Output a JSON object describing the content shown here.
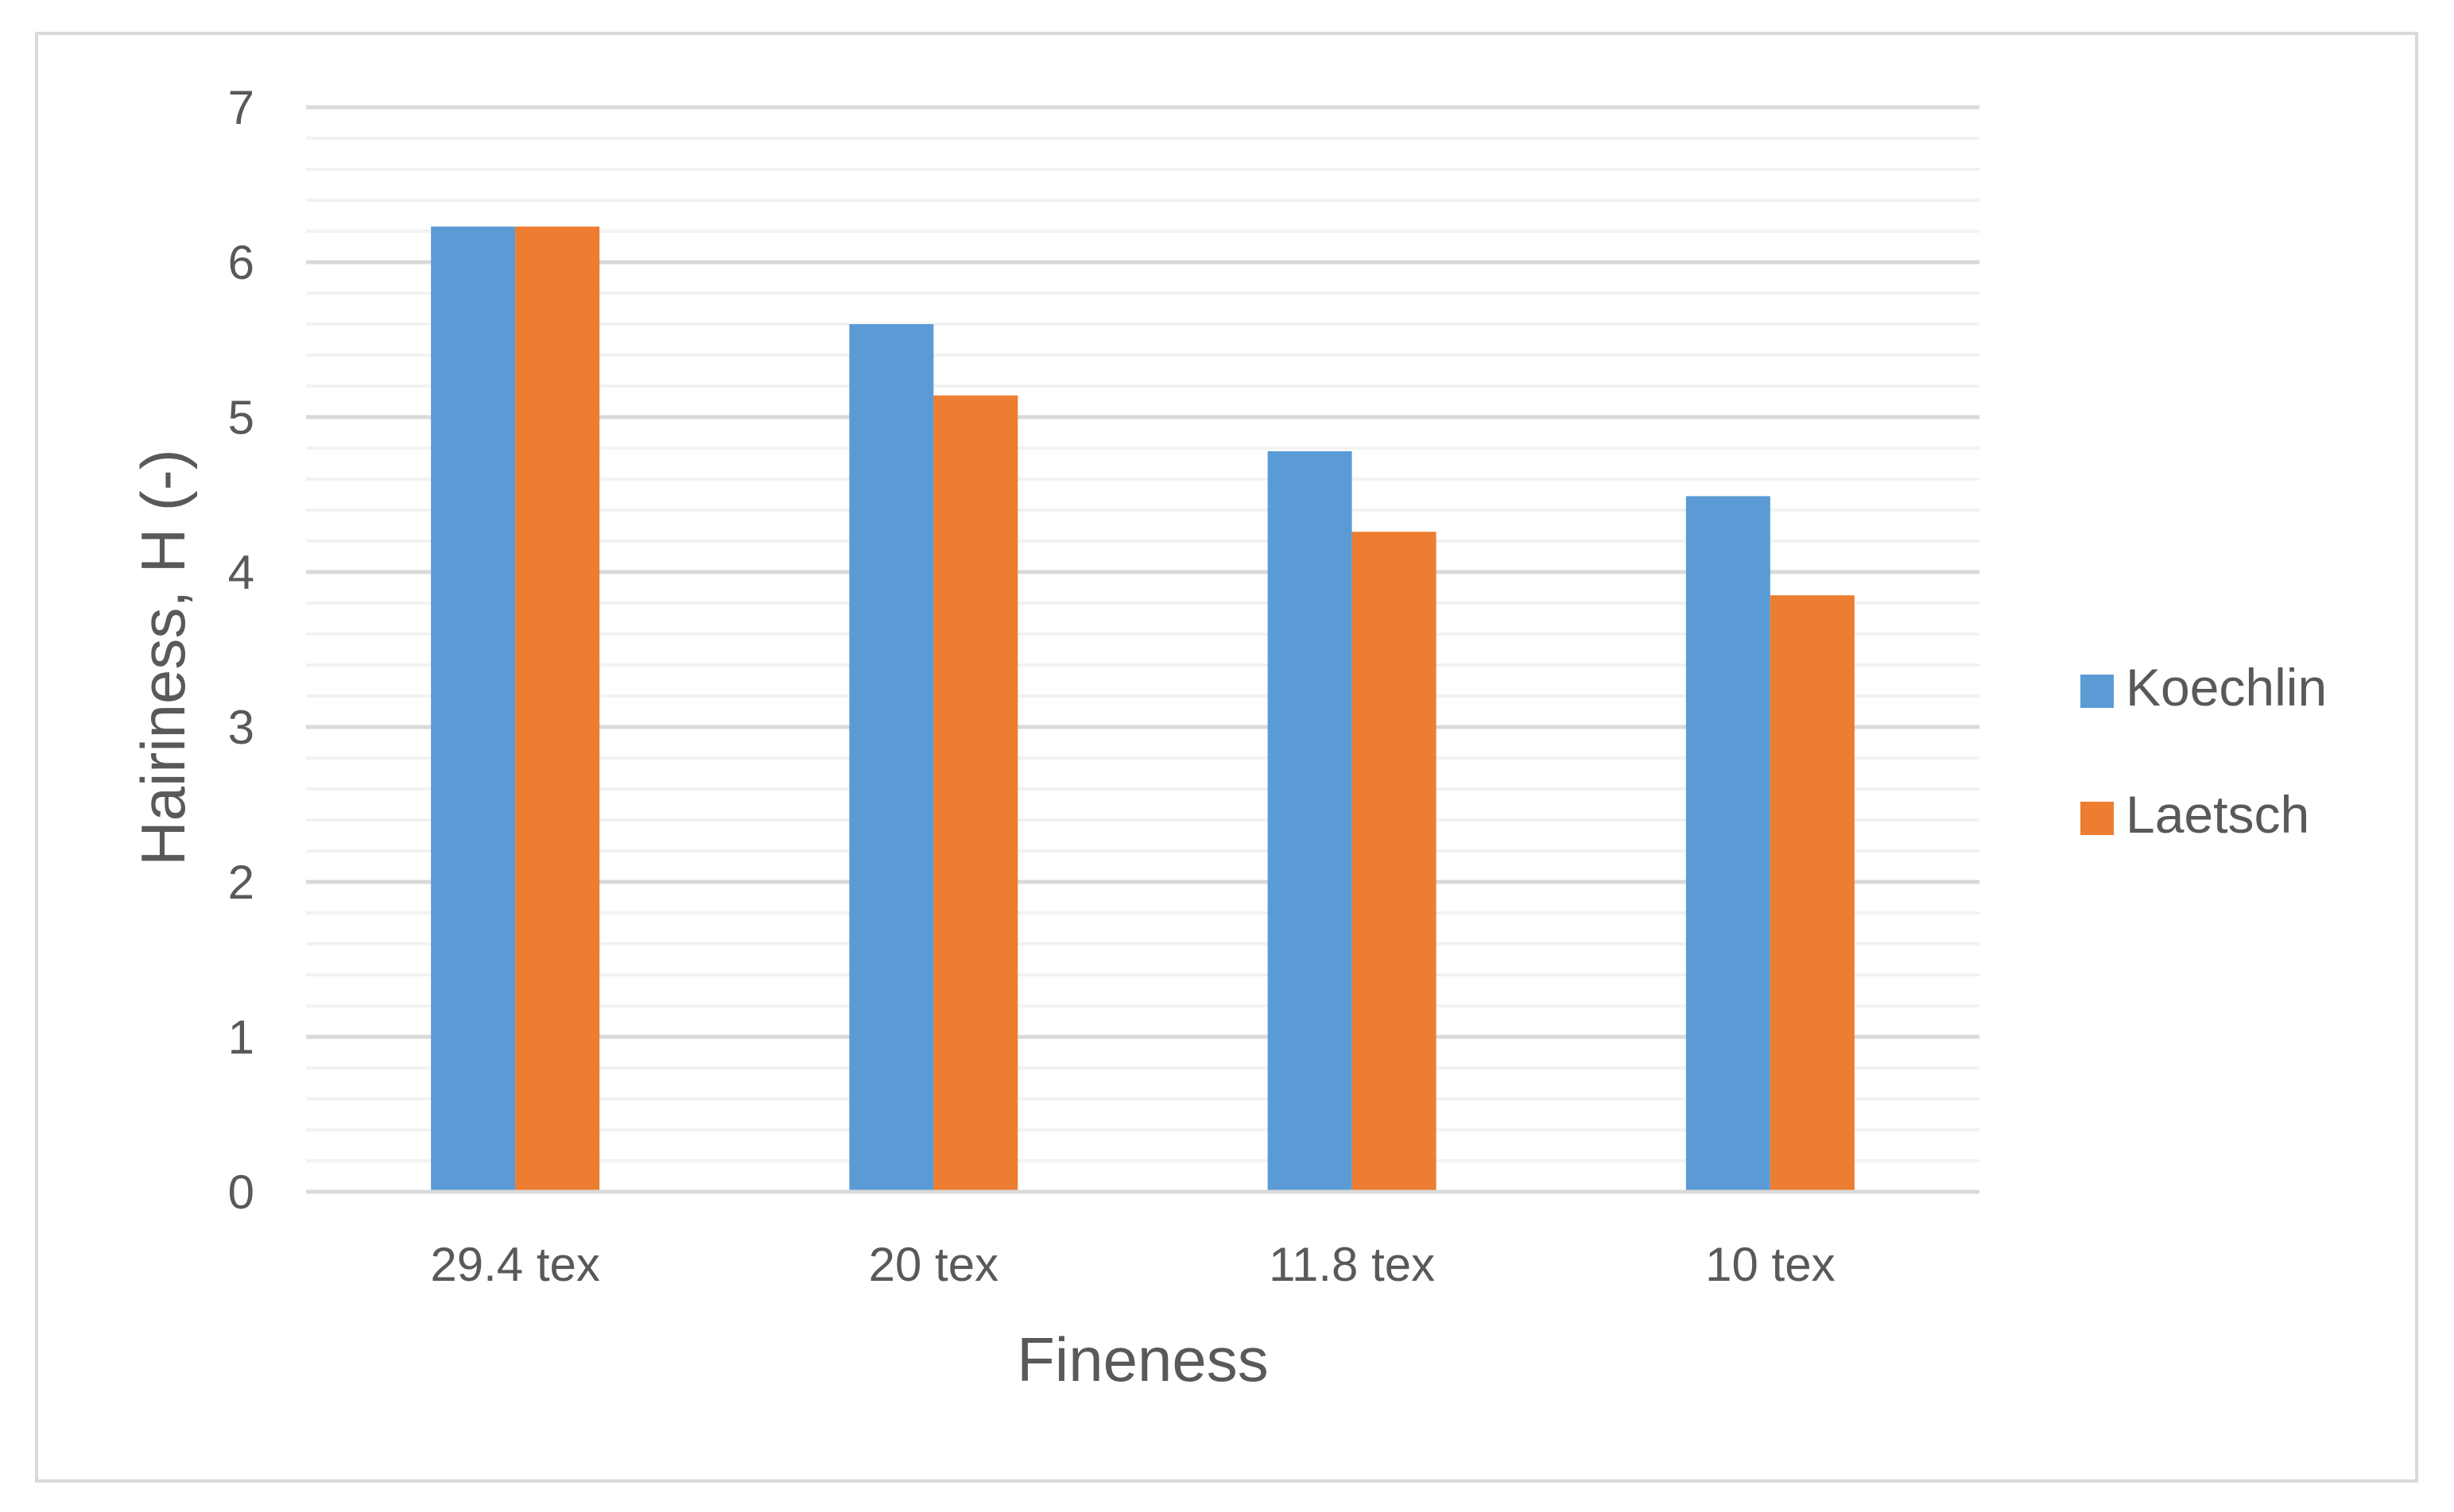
{
  "chart_data": {
    "type": "bar",
    "categories": [
      "29.4 tex",
      "20 tex",
      "11.8 tex",
      "10 tex"
    ],
    "series": [
      {
        "name": "Koechlin",
        "color": "#5b9bd5",
        "values": [
          6.23,
          5.6,
          4.78,
          4.49
        ]
      },
      {
        "name": "Laetsch",
        "color": "#ed7d31",
        "values": [
          6.23,
          5.14,
          4.26,
          3.85
        ]
      }
    ],
    "title": "",
    "xlabel": "Fineness",
    "ylabel": "Hairiness, H (-)",
    "ylim": [
      0,
      7
    ],
    "yticks": [
      "0",
      "1",
      "2",
      "3",
      "4",
      "5",
      "6",
      "7"
    ],
    "grid": "on (major and minor horizontal)",
    "legend_position": "right",
    "colors": {
      "major_grid": "#d9d9d9",
      "minor_grid": "#f2f2f2",
      "text": "#595959",
      "frame": "#d9d9d9"
    }
  }
}
